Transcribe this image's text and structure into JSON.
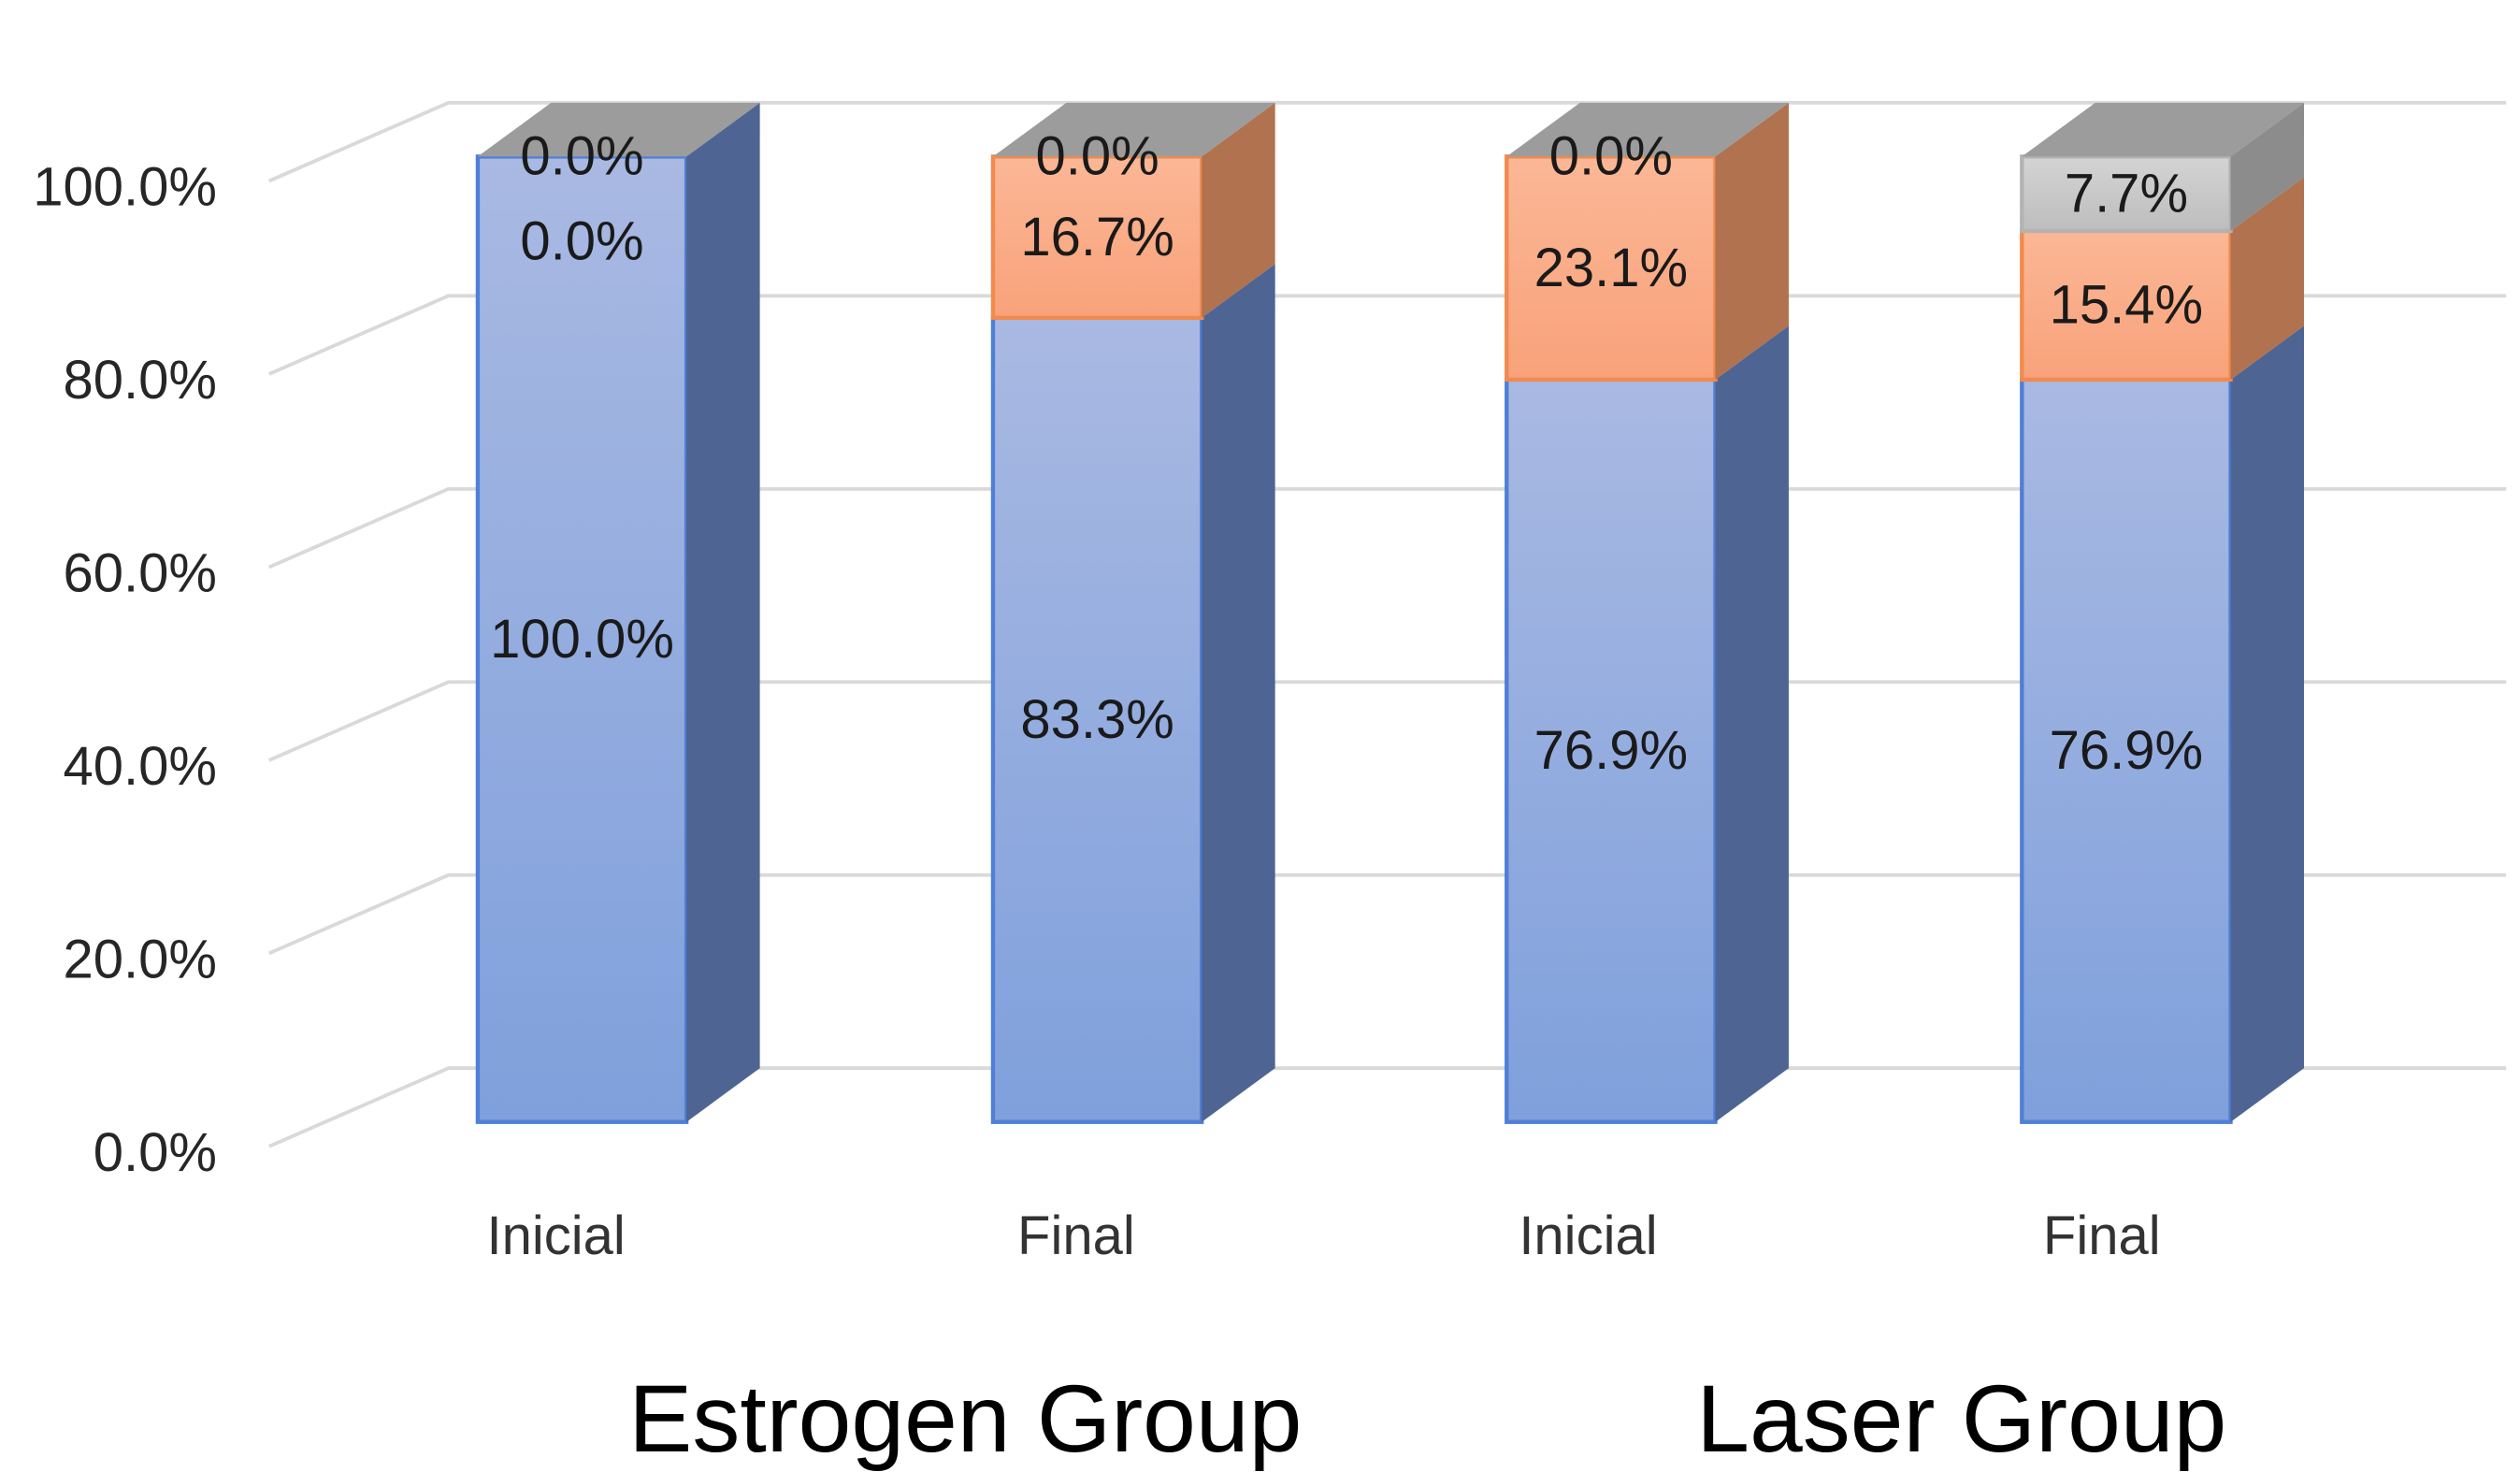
{
  "chart_data": {
    "type": "bar",
    "stacked": true,
    "three_d": true,
    "title": "",
    "xlabel": "",
    "ylabel": "",
    "ylim": [
      0,
      100
    ],
    "y_ticks": [
      "0.0%",
      "20.0%",
      "40.0%",
      "60.0%",
      "80.0%",
      "100.0%"
    ],
    "y_tick_values": [
      0,
      20,
      40,
      60,
      80,
      100
    ],
    "grid": true,
    "legend": "none",
    "categories": [
      "Inicial",
      "Final",
      "Inicial",
      "Final"
    ],
    "groups": [
      {
        "label": "Estrogen Group",
        "categories": [
          "Inicial",
          "Final"
        ]
      },
      {
        "label": "Laser Group",
        "categories": [
          "Inicial",
          "Final"
        ]
      }
    ],
    "series": [
      {
        "name": "series-1",
        "color": "#8eaadb",
        "values": [
          100.0,
          83.3,
          76.9,
          76.9
        ],
        "labels": [
          "100.0%",
          "83.3%",
          "76.9%",
          "76.9%"
        ]
      },
      {
        "name": "series-2",
        "color": "#f8a880",
        "values": [
          0.0,
          16.7,
          23.1,
          15.4
        ],
        "labels": [
          "0.0%",
          "16.7%",
          "23.1%",
          "15.4%"
        ]
      },
      {
        "name": "series-3",
        "color": "#c8c8c8",
        "values": [
          0.0,
          0.0,
          0.0,
          7.7
        ],
        "labels": [
          "0.0%",
          "0.0%",
          "0.0%",
          "7.7%"
        ]
      }
    ]
  }
}
